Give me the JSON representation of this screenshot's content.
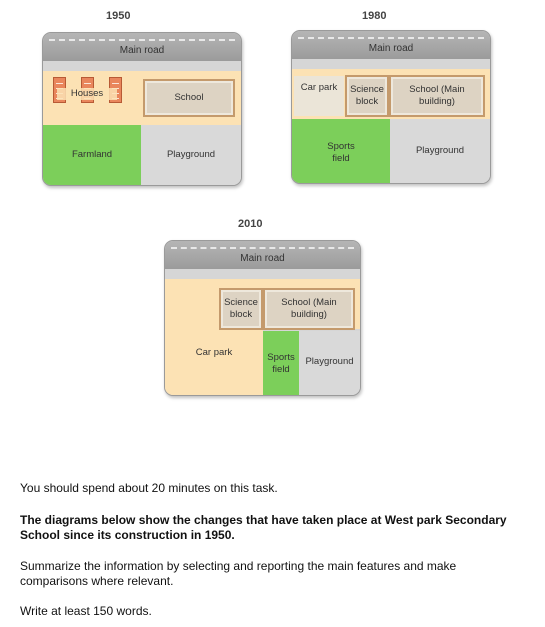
{
  "diagrams": {
    "d1950": {
      "year": "1950",
      "road": "Main road",
      "houses": "Houses",
      "school": "School",
      "farmland": "Farmland",
      "playground": "Playground"
    },
    "d1980": {
      "year": "1980",
      "road": "Main road",
      "car_park": "Car park",
      "science_block": "Science block",
      "school": "School (Main building)",
      "sports_field": "Sports field",
      "playground": "Playground"
    },
    "d2010": {
      "year": "2010",
      "road": "Main road",
      "science_block": "Science block",
      "school": "School (Main building)",
      "car_park": "Car park",
      "sports_field": "Sports field",
      "playground": "Playground"
    }
  },
  "task": {
    "time": "You should spend about 20 minutes on this task.",
    "prompt": "The diagrams below show the changes that have taken place at West park Secondary School since its construction in 1950.",
    "instruction": "Summarize the information by selecting and reporting the main features and make comparisons where relevant.",
    "words": "Write at least 150 words."
  },
  "colors": {
    "road": "#a6a6a6",
    "peach": "#fce2b4",
    "green": "#7ccf5a",
    "grey": "#d9d9d9",
    "building": "#ddd3c3"
  }
}
